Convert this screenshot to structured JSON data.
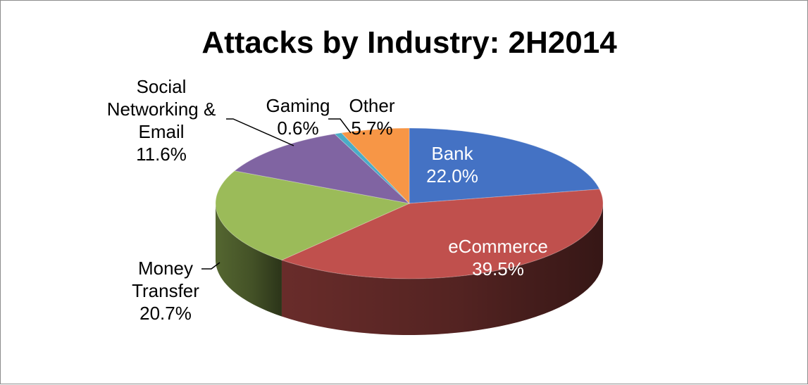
{
  "chart_data": {
    "type": "pie",
    "title": "Attacks by Industry: 2H2014",
    "slices": [
      {
        "key": "bank",
        "name": "Bank",
        "value": 22.0,
        "value_label": "22.0%",
        "color": "#4472C4",
        "label_inside": true
      },
      {
        "key": "ecommerce",
        "name": "eCommerce",
        "value": 39.5,
        "value_label": "39.5%",
        "color": "#C0504D",
        "label_inside": true
      },
      {
        "key": "money-transfer",
        "name": "Money Transfer",
        "value": 20.7,
        "value_label": "20.7%",
        "color": "#9BBB59",
        "label_inside": false
      },
      {
        "key": "social",
        "name": "Social Networking & Email",
        "value": 11.6,
        "value_label": "11.6%",
        "color": "#8064A2",
        "label_inside": false
      },
      {
        "key": "gaming",
        "name": "Gaming",
        "value": 0.6,
        "value_label": "0.6%",
        "color": "#4BACC6",
        "label_inside": false
      },
      {
        "key": "other",
        "name": "Other",
        "value": 5.7,
        "value_label": "5.7%",
        "color": "#F79646",
        "label_inside": false
      }
    ],
    "style": "3d-pie",
    "legend": "none"
  }
}
